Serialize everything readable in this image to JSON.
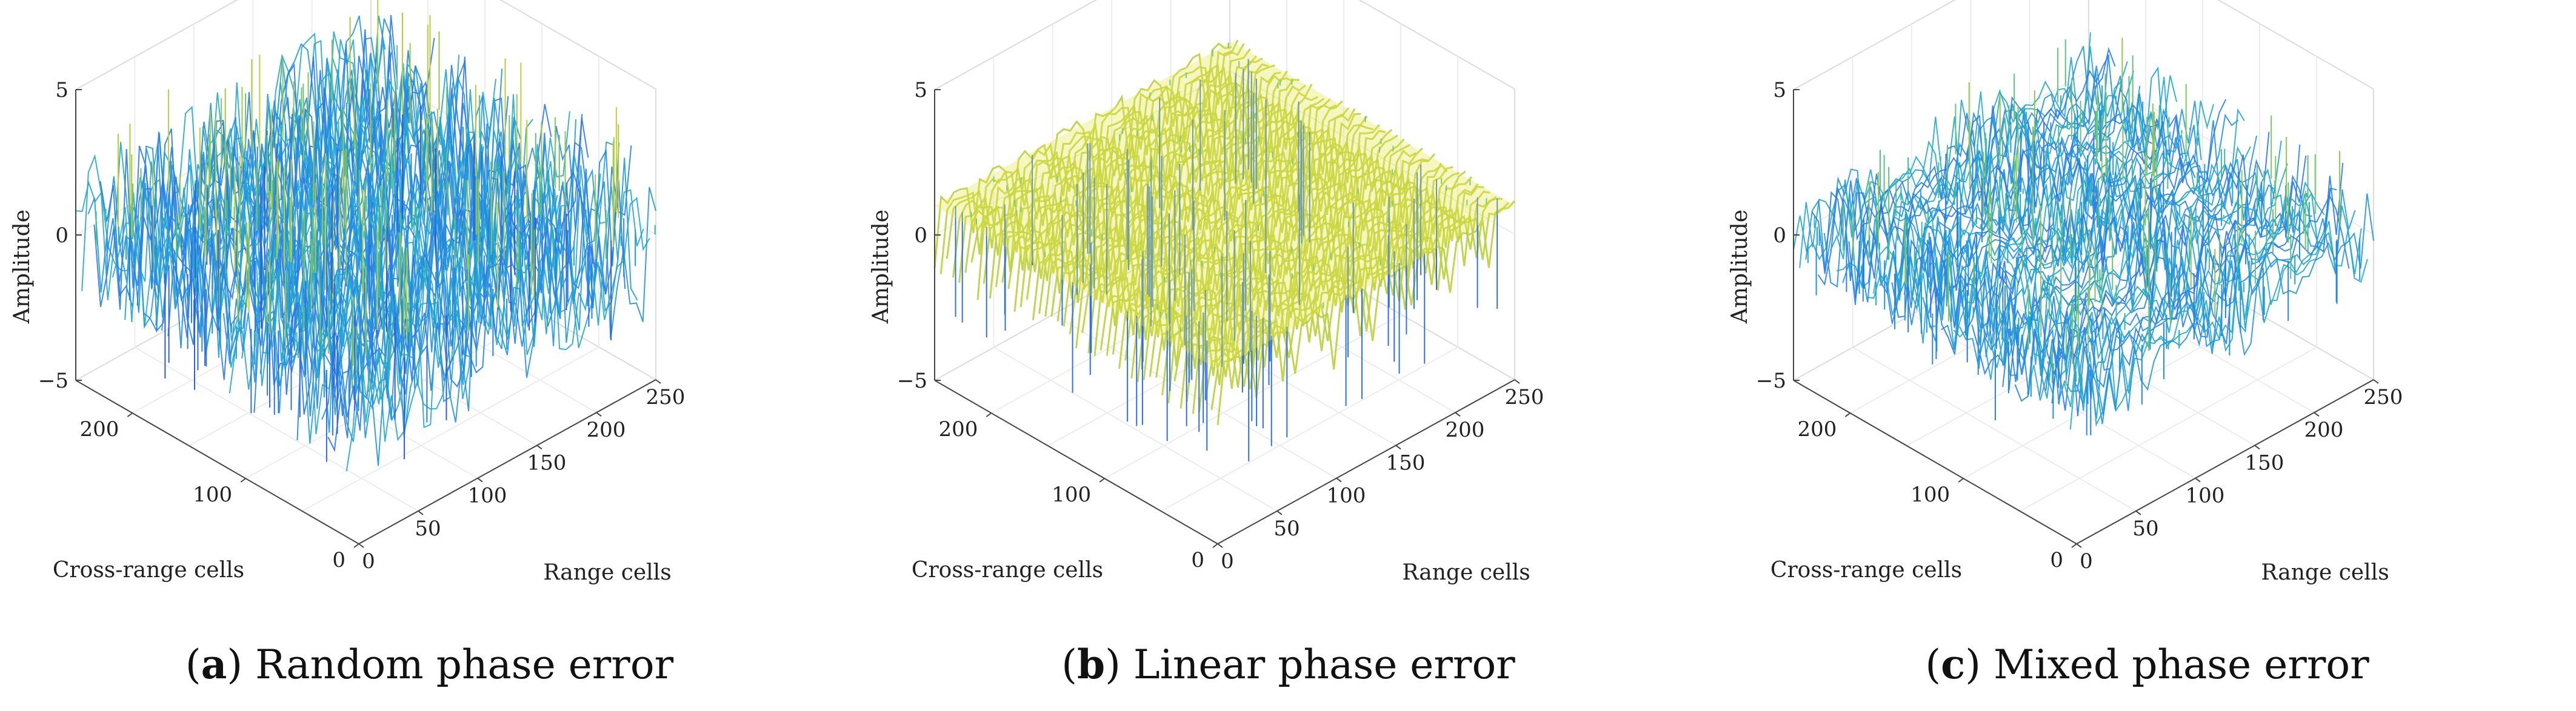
{
  "figure": {
    "panels": [
      {
        "letter": "a",
        "title": "Random phase error"
      },
      {
        "letter": "b",
        "title": "Linear phase error"
      },
      {
        "letter": "c",
        "title": "Mixed phase error"
      }
    ]
  },
  "chart_data": [
    {
      "type": "surface",
      "title": "(a) Random phase error",
      "xlabel": "Range cells",
      "ylabel": "Cross-range cells",
      "zlabel": "Amplitude",
      "xlim": [
        0,
        250
      ],
      "ylim": [
        0,
        250
      ],
      "zlim": [
        -5,
        5
      ],
      "x_ticks": [
        "0",
        "50",
        "100",
        "150",
        "200",
        "250"
      ],
      "y_ticks": [
        "0",
        "100",
        "200"
      ],
      "z_ticks": [
        "−5",
        "0",
        "5"
      ],
      "grid": true,
      "colormap": [
        "#3e26a8",
        "#2f6fe8",
        "#1ca2d8",
        "#3cbda0",
        "#a9c93e",
        "#f9e22d"
      ],
      "surface_model": "random",
      "base_amplitude": 0.0,
      "noise_amplitude": 2.8
    },
    {
      "type": "surface",
      "title": "(b) Linear phase error",
      "xlabel": "Range cells",
      "ylabel": "Cross-range cells",
      "zlabel": "Amplitude",
      "xlim": [
        0,
        250
      ],
      "ylim": [
        0,
        250
      ],
      "zlim": [
        -5,
        5
      ],
      "x_ticks": [
        "0",
        "50",
        "100",
        "150",
        "200",
        "250"
      ],
      "y_ticks": [
        "0",
        "100",
        "200"
      ],
      "z_ticks": [
        "−5",
        "0",
        "5"
      ],
      "grid": true,
      "colormap": [
        "#3e26a8",
        "#2f6fe8",
        "#1ca2d8",
        "#3cbda0",
        "#a9c93e",
        "#f9e22d"
      ],
      "surface_model": "linear",
      "base_amplitude": 1.0,
      "noise_amplitude": 0.4
    },
    {
      "type": "surface",
      "title": "(c) Mixed phase error",
      "xlabel": "Range cells",
      "ylabel": "Cross-range cells",
      "zlabel": "Amplitude",
      "xlim": [
        0,
        250
      ],
      "ylim": [
        0,
        250
      ],
      "zlim": [
        -5,
        5
      ],
      "x_ticks": [
        "0",
        "50",
        "100",
        "150",
        "200",
        "250"
      ],
      "y_ticks": [
        "0",
        "100",
        "200"
      ],
      "z_ticks": [
        "−5",
        "0",
        "5"
      ],
      "grid": true,
      "colormap": [
        "#3e26a8",
        "#2f6fe8",
        "#1ca2d8",
        "#3cbda0",
        "#a9c93e",
        "#f9e22d"
      ],
      "surface_model": "mixed",
      "base_amplitude": 0.0,
      "noise_amplitude": 2.0
    }
  ]
}
